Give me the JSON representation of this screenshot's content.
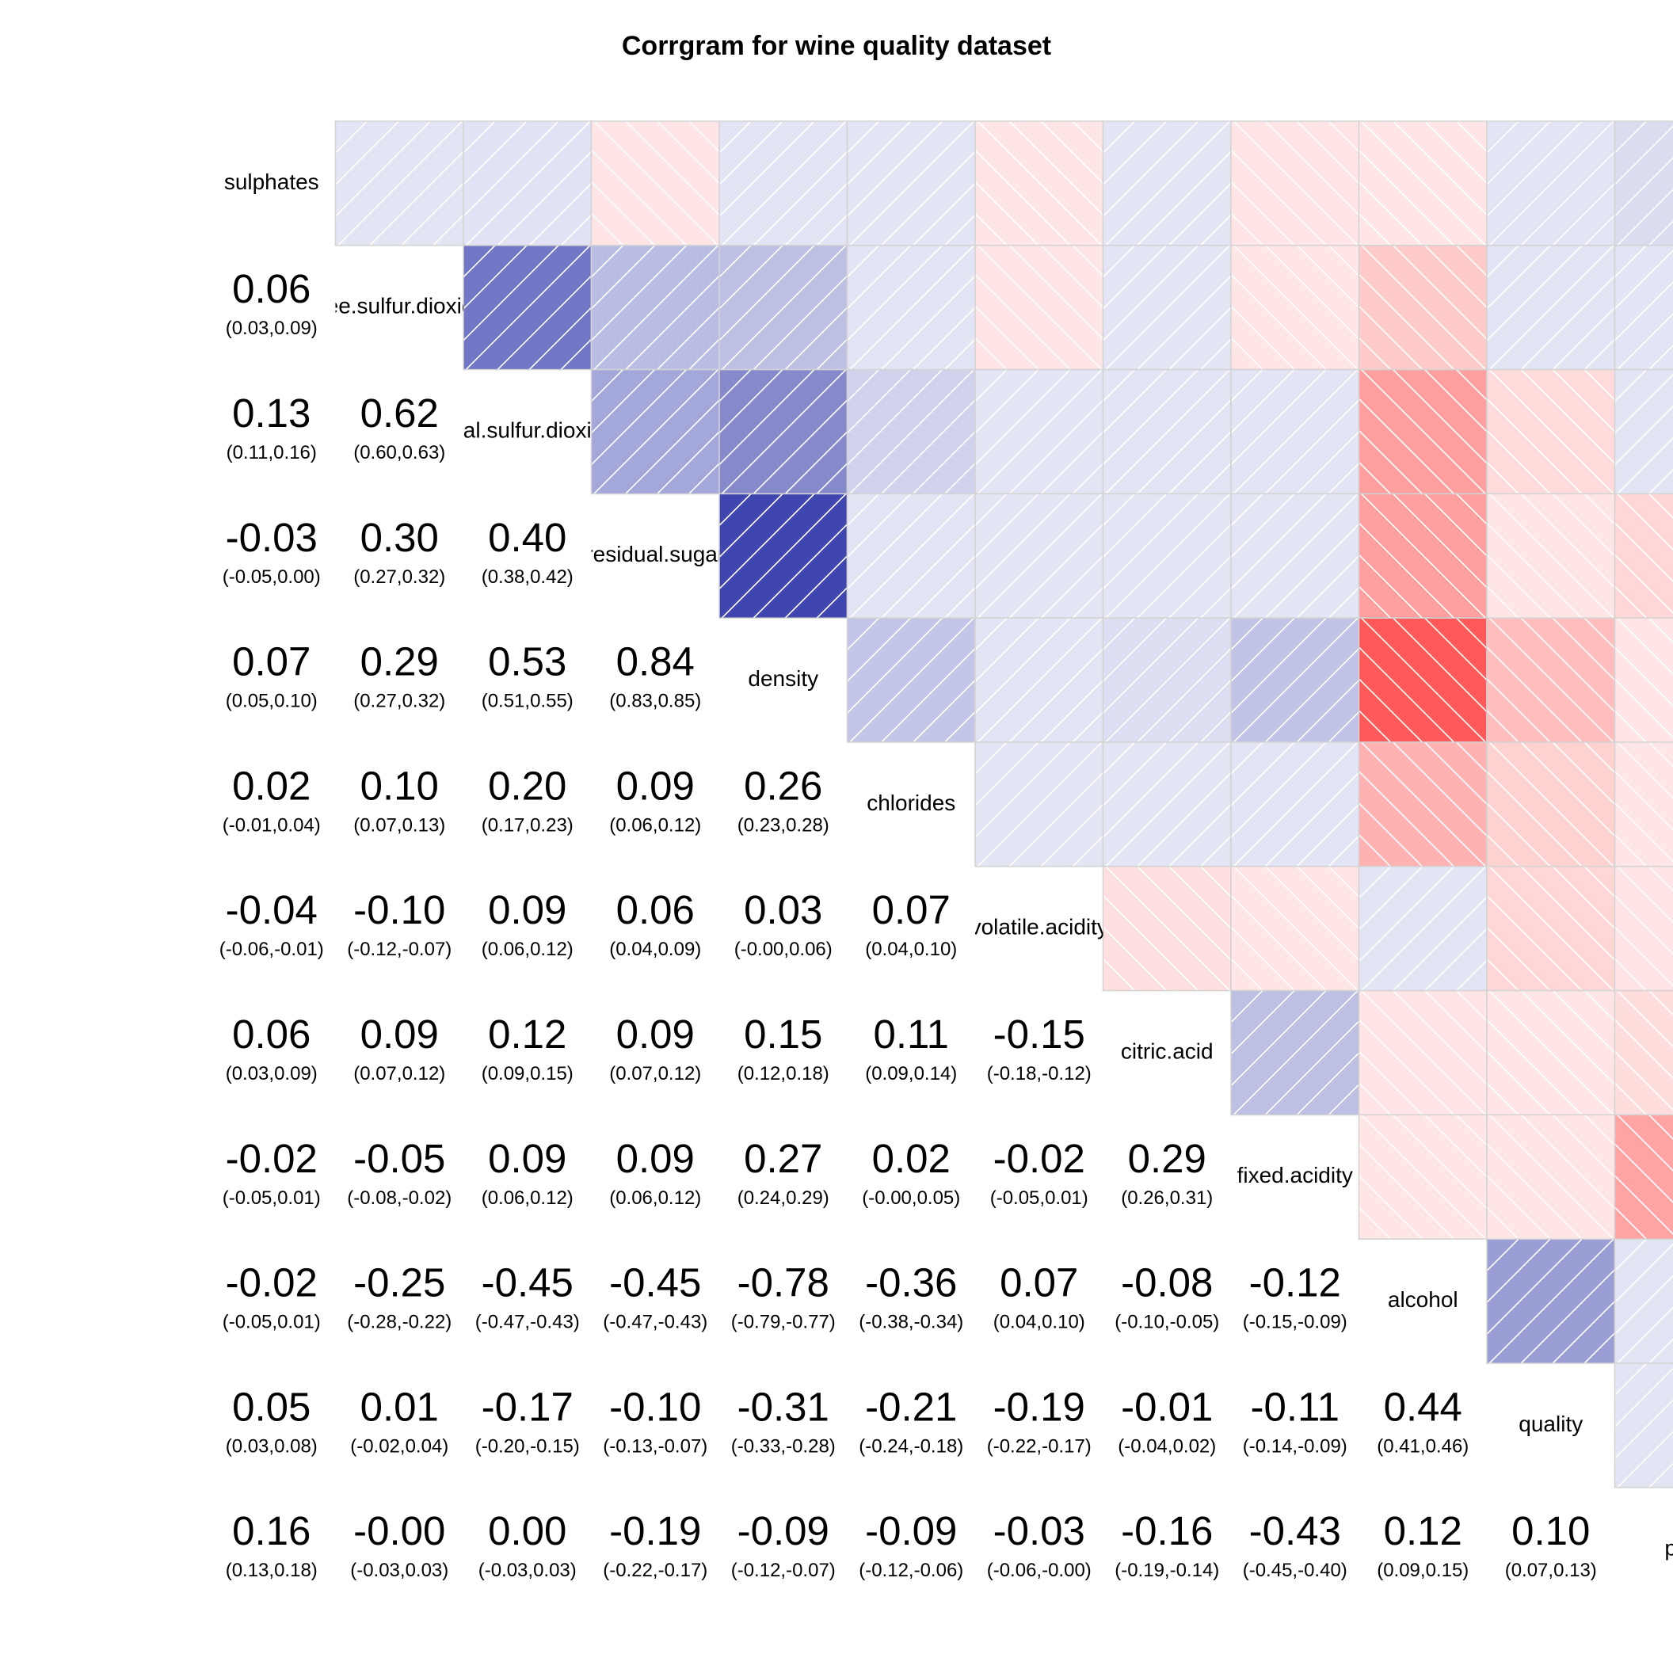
{
  "chart_data": {
    "type": "heatmap",
    "title": "Corrgram for wine quality dataset",
    "variables": [
      "sulphates",
      "free.sulfur.dioxide",
      "total.sulfur.dioxide",
      "residual.sugar",
      "density",
      "chlorides",
      "volatile.acidity",
      "citric.acid",
      "fixed.acidity",
      "alcohol",
      "quality",
      "pH"
    ],
    "correlations": [
      [
        1.0,
        0.06,
        0.13,
        -0.03,
        0.07,
        0.02,
        -0.04,
        0.06,
        -0.02,
        -0.02,
        0.05,
        0.16
      ],
      [
        0.06,
        1.0,
        0.62,
        0.3,
        0.29,
        0.1,
        -0.1,
        0.09,
        -0.05,
        -0.25,
        0.01,
        -0.0
      ],
      [
        0.13,
        0.62,
        1.0,
        0.4,
        0.53,
        0.2,
        0.09,
        0.12,
        0.09,
        -0.45,
        -0.17,
        0.0
      ],
      [
        -0.03,
        0.3,
        0.4,
        1.0,
        0.84,
        0.09,
        0.06,
        0.09,
        0.09,
        -0.45,
        -0.1,
        -0.19
      ],
      [
        0.07,
        0.29,
        0.53,
        0.84,
        1.0,
        0.26,
        0.03,
        0.15,
        0.27,
        -0.78,
        -0.31,
        -0.09
      ],
      [
        0.02,
        0.1,
        0.2,
        0.09,
        0.26,
        1.0,
        0.07,
        0.11,
        0.02,
        -0.36,
        -0.21,
        -0.09
      ],
      [
        -0.04,
        -0.1,
        0.09,
        0.06,
        0.03,
        0.07,
        1.0,
        -0.15,
        -0.02,
        0.07,
        -0.19,
        -0.03
      ],
      [
        0.06,
        0.09,
        0.12,
        0.09,
        0.15,
        0.11,
        -0.15,
        1.0,
        0.29,
        -0.08,
        -0.01,
        -0.16
      ],
      [
        -0.02,
        -0.05,
        0.09,
        0.09,
        0.27,
        0.02,
        -0.02,
        0.29,
        1.0,
        -0.12,
        -0.11,
        -0.43
      ],
      [
        -0.02,
        -0.25,
        -0.45,
        -0.45,
        -0.78,
        -0.36,
        0.07,
        -0.08,
        -0.12,
        1.0,
        0.44,
        0.12
      ],
      [
        0.05,
        0.01,
        -0.17,
        -0.1,
        -0.31,
        -0.21,
        -0.19,
        -0.01,
        -0.11,
        0.44,
        1.0,
        0.1
      ],
      [
        0.16,
        -0.0,
        0.0,
        -0.19,
        -0.09,
        -0.09,
        -0.03,
        -0.16,
        -0.43,
        0.12,
        0.1,
        1.0
      ]
    ],
    "lower_coef_text": [
      [],
      [
        "0.06"
      ],
      [
        "0.13",
        "0.62"
      ],
      [
        "-0.03",
        "0.30",
        "0.40"
      ],
      [
        "0.07",
        "0.29",
        "0.53",
        "0.84"
      ],
      [
        "0.02",
        "0.10",
        "0.20",
        "0.09",
        "0.26"
      ],
      [
        "-0.04",
        "-0.10",
        "0.09",
        "0.06",
        "0.03",
        "0.07"
      ],
      [
        "0.06",
        "0.09",
        "0.12",
        "0.09",
        "0.15",
        "0.11",
        "-0.15"
      ],
      [
        "-0.02",
        "-0.05",
        "0.09",
        "0.09",
        "0.27",
        "0.02",
        "-0.02",
        "0.29"
      ],
      [
        "-0.02",
        "-0.25",
        "-0.45",
        "-0.45",
        "-0.78",
        "-0.36",
        "0.07",
        "-0.08",
        "-0.12"
      ],
      [
        "0.05",
        "0.01",
        "-0.17",
        "-0.10",
        "-0.31",
        "-0.21",
        "-0.19",
        "-0.01",
        "-0.11",
        "0.44"
      ],
      [
        "0.16",
        "-0.00",
        "0.00",
        "-0.19",
        "-0.09",
        "-0.09",
        "-0.03",
        "-0.16",
        "-0.43",
        "0.12",
        "0.10"
      ]
    ],
    "lower_ci_text": [
      [],
      [
        "(0.03,0.09)"
      ],
      [
        "(0.11,0.16)",
        "(0.60,0.63)"
      ],
      [
        "(-0.05,0.00)",
        "(0.27,0.32)",
        "(0.38,0.42)"
      ],
      [
        "(0.05,0.10)",
        "(0.27,0.32)",
        "(0.51,0.55)",
        "(0.83,0.85)"
      ],
      [
        "(-0.01,0.04)",
        "(0.07,0.13)",
        "(0.17,0.23)",
        "(0.06,0.12)",
        "(0.23,0.28)"
      ],
      [
        "(-0.06,-0.01)",
        "(-0.12,-0.07)",
        "(0.06,0.12)",
        "(0.04,0.09)",
        "(-0.00,0.06)",
        "(0.04,0.10)"
      ],
      [
        "(0.03,0.09)",
        "(0.07,0.12)",
        "(0.09,0.15)",
        "(0.07,0.12)",
        "(0.12,0.18)",
        "(0.09,0.14)",
        "(-0.18,-0.12)"
      ],
      [
        "(-0.05,0.01)",
        "(-0.08,-0.02)",
        "(0.06,0.12)",
        "(0.06,0.12)",
        "(0.24,0.29)",
        "(-0.00,0.05)",
        "(-0.05,0.01)",
        "(0.26,0.31)"
      ],
      [
        "(-0.05,0.01)",
        "(-0.28,-0.22)",
        "(-0.47,-0.43)",
        "(-0.47,-0.43)",
        "(-0.79,-0.77)",
        "(-0.38,-0.34)",
        "(0.04,0.10)",
        "(-0.10,-0.05)",
        "(-0.15,-0.09)"
      ],
      [
        "(0.03,0.08)",
        "(-0.02,0.04)",
        "(-0.20,-0.15)",
        "(-0.13,-0.07)",
        "(-0.33,-0.28)",
        "(-0.24,-0.18)",
        "(-0.22,-0.17)",
        "(-0.04,0.02)",
        "(-0.14,-0.09)",
        "(0.41,0.46)"
      ],
      [
        "(0.13,0.18)",
        "(-0.03,0.03)",
        "(-0.03,0.03)",
        "(-0.22,-0.17)",
        "(-0.12,-0.07)",
        "(-0.12,-0.06)",
        "(-0.06,-0.00)",
        "(-0.19,-0.14)",
        "(-0.45,-0.40)",
        "(0.09,0.15)",
        "(0.07,0.13)"
      ]
    ],
    "upper_panel": "shade",
    "lower_panel": "conf",
    "diag_panel": "names",
    "colors": {
      "positive": "#1a23a0",
      "negative": "#ff2a2a",
      "neutral": "#ffffff",
      "cell_border": "#d3d3d3",
      "hatch": "#ffffff"
    },
    "scale_range": [
      -1,
      1
    ],
    "grid": false,
    "legend": "none"
  }
}
